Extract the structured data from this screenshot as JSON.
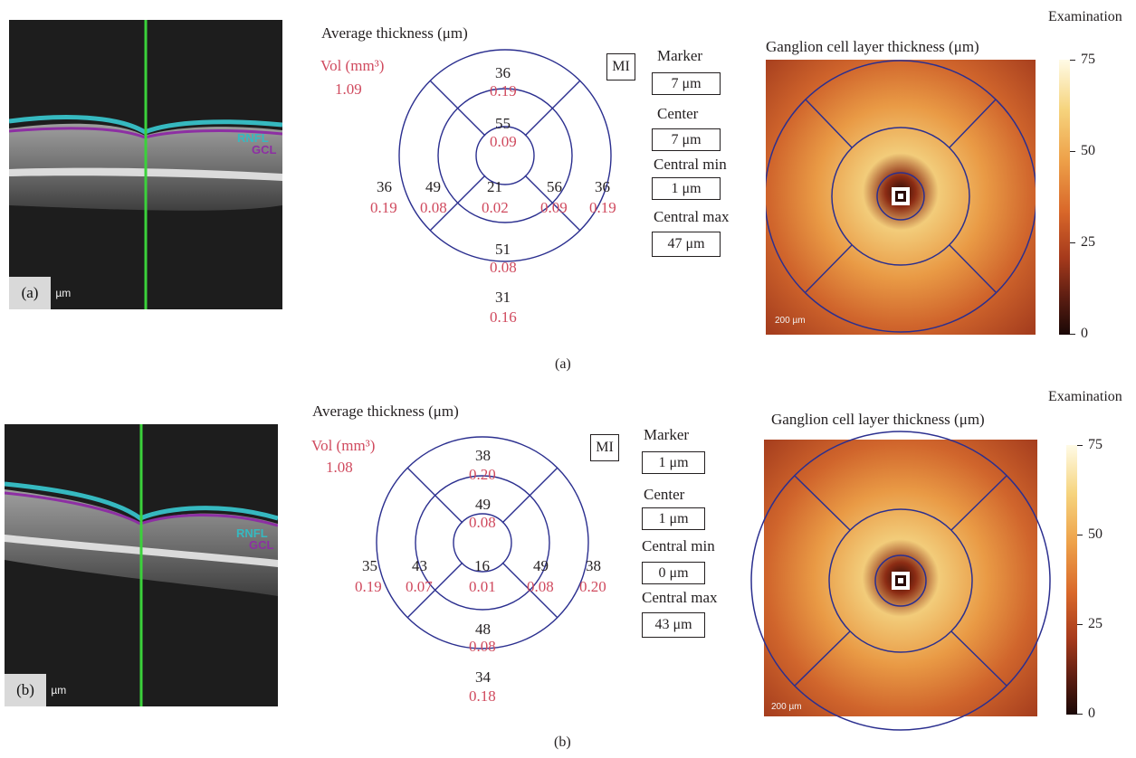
{
  "panels": {
    "a": {
      "caption": "(a)",
      "oct": {
        "tag": "(a)",
        "scale_text": " µm",
        "layer_labels": [
          "RNFL",
          "GCL"
        ]
      },
      "grid_title": "Average thickness (μm)",
      "vol_label": "Vol (mm³)",
      "vol_value": "1.09",
      "mi_label": "MI",
      "sectors": {
        "outer_top": {
          "thickness": "36",
          "vol": "0.19"
        },
        "inner_top": {
          "thickness": "55",
          "vol": "0.09"
        },
        "outer_left": {
          "thickness": "36",
          "vol": "0.19"
        },
        "inner_left": {
          "thickness": "49",
          "vol": "0.08"
        },
        "center": {
          "thickness": "21",
          "vol": "0.02"
        },
        "inner_right": {
          "thickness": "56",
          "vol": "0.09"
        },
        "outer_right": {
          "thickness": "36",
          "vol": "0.19"
        },
        "inner_bottom": {
          "thickness": "51",
          "vol": "0.08"
        },
        "outer_bottom": {
          "thickness": "31",
          "vol": "0.16"
        }
      },
      "stats": {
        "marker_label": "Marker",
        "marker_value": "7 μm",
        "center_label": "Center",
        "center_value": "7 μm",
        "central_min_label": "Central min",
        "central_min_value": "1 μm",
        "central_max_label": "Central max",
        "central_max_value": "47 μm"
      },
      "examination_label": "Examination",
      "map_title": "Ganglion cell layer thickness (μm)",
      "map_scale_text": "200 µm",
      "colorbar_ticks": [
        "75",
        "50",
        "25",
        "0"
      ]
    },
    "b": {
      "caption": "(b)",
      "oct": {
        "tag": "(b)",
        "scale_text": " µm",
        "layer_labels": [
          "RNFL",
          "GCL"
        ]
      },
      "grid_title": "Average thickness (μm)",
      "vol_label": "Vol (mm³)",
      "vol_value": "1.08",
      "mi_label": "MI",
      "sectors": {
        "outer_top": {
          "thickness": "38",
          "vol": "0.20"
        },
        "inner_top": {
          "thickness": "49",
          "vol": "0.08"
        },
        "outer_left": {
          "thickness": "35",
          "vol": "0.19"
        },
        "inner_left": {
          "thickness": "43",
          "vol": "0.07"
        },
        "center": {
          "thickness": "16",
          "vol": "0.01"
        },
        "inner_right": {
          "thickness": "49",
          "vol": "0.08"
        },
        "outer_right": {
          "thickness": "38",
          "vol": "0.20"
        },
        "inner_bottom": {
          "thickness": "48",
          "vol": "0.08"
        },
        "outer_bottom": {
          "thickness": "34",
          "vol": "0.18"
        }
      },
      "stats": {
        "marker_label": "Marker",
        "marker_value": "1 μm",
        "center_label": "Center",
        "center_value": "1 μm",
        "central_min_label": "Central min",
        "central_min_value": "0 μm",
        "central_max_label": "Central max",
        "central_max_value": "43 μm"
      },
      "examination_label": "Examination",
      "map_title": "Ganglion cell layer thickness (μm)",
      "map_scale_text": "200 µm",
      "colorbar_ticks": [
        "75",
        "50",
        "25",
        "0"
      ]
    }
  },
  "colors": {
    "grid_line": "#2b2f8f",
    "volume_text": "#d04a5e",
    "oct_green_line": "#3bd13b",
    "rnfl_layer": "#36b9c0",
    "gcl_layer": "#8d2fa3"
  }
}
